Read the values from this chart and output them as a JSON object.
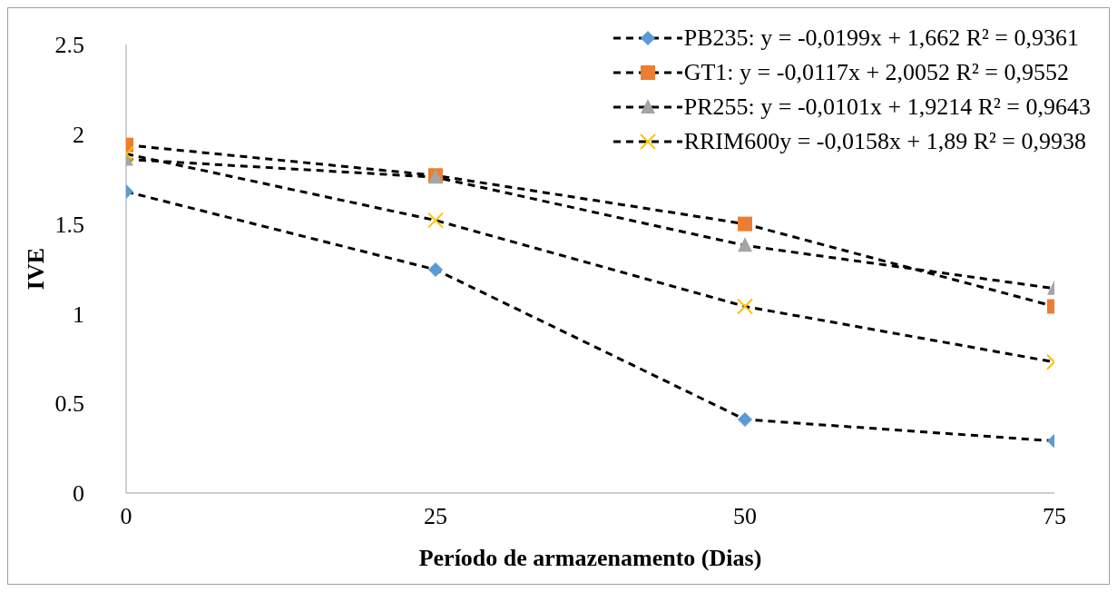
{
  "chart_data": {
    "type": "line",
    "xlabel": "Período de armazenamento (Dias)",
    "ylabel": "IVE",
    "x": [
      0,
      25,
      50,
      75
    ],
    "series": [
      {
        "name": "PB235: y = -0,0199x + 1,662 R² = 0,9361",
        "color": "#5b9bd5",
        "marker": "diamond",
        "values": [
          1.68,
          1.245,
          0.41,
          0.29
        ]
      },
      {
        "name": "GT1: y = -0,0117x + 2,0052 R² = 0,9552",
        "color": "#ed7d31",
        "marker": "square",
        "values": [
          1.94,
          1.77,
          1.5,
          1.04
        ]
      },
      {
        "name": "PR255: y = -0,0101x + 1,9214 R² = 0,9643",
        "color": "#a5a5a5",
        "marker": "triangle",
        "values": [
          1.86,
          1.76,
          1.38,
          1.14
        ]
      },
      {
        "name": "RRIM600y = -0,0158x + 1,89 R² = 0,9938",
        "color": "#ffc000",
        "marker": "cross",
        "values": [
          1.89,
          1.52,
          1.04,
          0.73
        ]
      }
    ],
    "xlim": [
      0,
      75
    ],
    "xticks": [
      0,
      25,
      50,
      75
    ],
    "ylim": [
      0,
      2.5
    ],
    "yticks": [
      0,
      0.5,
      1,
      1.5,
      2,
      2.5
    ],
    "grid": false,
    "legend": "top right",
    "line_style": "dashed"
  }
}
